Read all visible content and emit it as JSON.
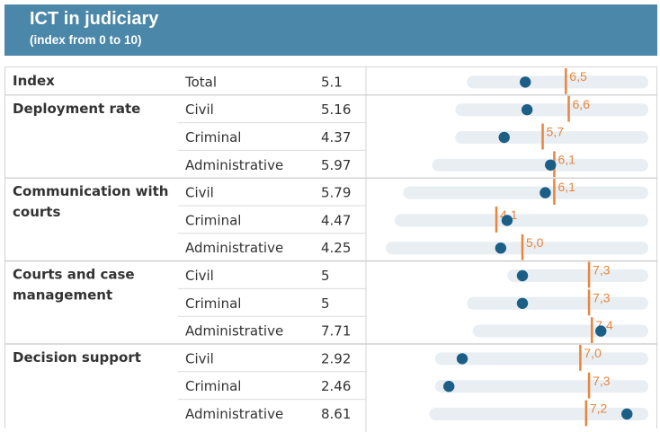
{
  "header": {
    "title": "ICT in judiciary",
    "subtitle": "(index from 0 to 10)"
  },
  "colors": {
    "header_bg": "#4a87a8",
    "dot": "#1b5e86",
    "marker": "#e8853d",
    "track": "#e8eef2"
  },
  "chart_data": {
    "type": "dot-range",
    "title": "ICT in judiciary",
    "subtitle": "(index from 0 to 10)",
    "xlim": [
      0,
      10
    ],
    "groups": [
      {
        "label": "Index",
        "rows": [
          {
            "sub": "Total",
            "value_label": "5.1",
            "value": 5.1,
            "marker": 6.5,
            "marker_label": "6,5",
            "range": [
              3.3,
              9.3
            ]
          }
        ]
      },
      {
        "label": "Deployment rate",
        "rows": [
          {
            "sub": "Civil",
            "value_label": "5.16",
            "value": 5.16,
            "marker": 6.6,
            "marker_label": "6,6",
            "range": [
              2.9,
              9.4
            ]
          },
          {
            "sub": "Criminal",
            "value_label": "4.37",
            "value": 4.37,
            "marker": 5.7,
            "marker_label": "5,7",
            "range": [
              2.9,
              9.4
            ]
          },
          {
            "sub": "Administrative",
            "value_label": "5.97",
            "value": 5.97,
            "marker": 6.1,
            "marker_label": "6,1",
            "range": [
              2.1,
              9.8
            ]
          }
        ]
      },
      {
        "label": "Communication with courts",
        "rows": [
          {
            "sub": "Civil",
            "value_label": "5.79",
            "value": 5.79,
            "marker": 6.1,
            "marker_label": "6,1",
            "range": [
              1.1,
              10.3
            ]
          },
          {
            "sub": "Criminal",
            "value_label": "4.47",
            "value": 4.47,
            "marker": 4.1,
            "marker_label": "4,1",
            "range": [
              0.8,
              9.8
            ]
          },
          {
            "sub": "Administrative",
            "value_label": "4.25",
            "value": 4.25,
            "marker": 5.0,
            "marker_label": "5,0",
            "range": [
              0.5,
              10.0
            ]
          }
        ]
      },
      {
        "label": "Courts and case management",
        "rows": [
          {
            "sub": "Civil",
            "value_label": "5",
            "value": 5,
            "marker": 7.3,
            "marker_label": "7,3",
            "range": [
              4.7,
              9.8
            ]
          },
          {
            "sub": "Criminal",
            "value_label": "5",
            "value": 5,
            "marker": 7.3,
            "marker_label": "7,3",
            "range": [
              3.3,
              9.3
            ]
          },
          {
            "sub": "Administrative",
            "value_label": "7.71",
            "value": 7.71,
            "marker": 7.4,
            "marker_label": "7,4",
            "range": [
              3.5,
              9.2
            ]
          }
        ]
      },
      {
        "label": "Decision support",
        "rows": [
          {
            "sub": "Civil",
            "value_label": "2.92",
            "value": 2.92,
            "marker": 7.0,
            "marker_label": "7,0",
            "range": [
              2.2,
              9.4
            ]
          },
          {
            "sub": "Criminal",
            "value_label": "2.46",
            "value": 2.46,
            "marker": 7.3,
            "marker_label": "7,3",
            "range": [
              2.2,
              9.2
            ]
          },
          {
            "sub": "Administrative",
            "value_label": "8.61",
            "value": 8.61,
            "marker": 7.2,
            "marker_label": "7,2",
            "range": [
              2.0,
              9.4
            ]
          }
        ]
      }
    ]
  }
}
